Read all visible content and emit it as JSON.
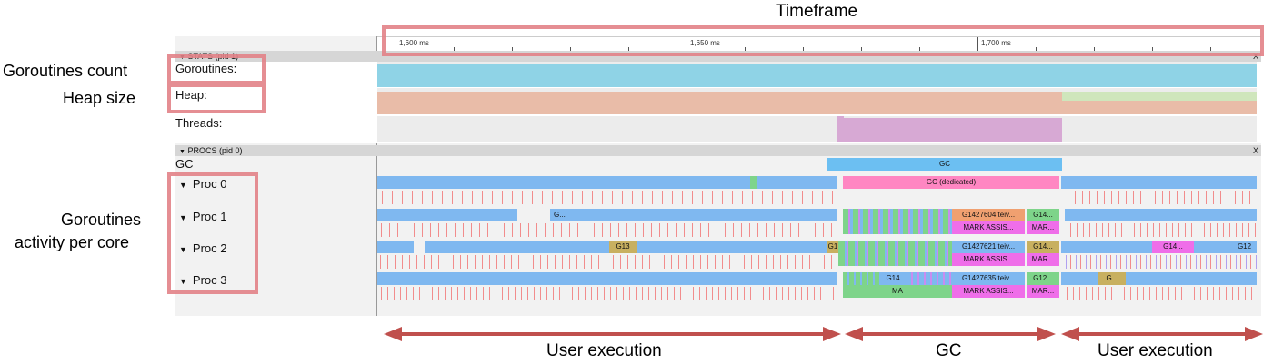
{
  "annotations": {
    "timeframe": "Timeframe",
    "goroutines_count": "Goroutines count",
    "heap_size": "Heap size",
    "activity_line1": "Goroutines",
    "activity_line2": "activity per core",
    "user_execution_left": "User execution",
    "gc_phase": "GC",
    "user_execution_right": "User execution"
  },
  "timeline": {
    "ticks": [
      "1,600 ms",
      "1,650 ms",
      "1,700 ms"
    ]
  },
  "stats": {
    "header": "STATS (pid 1)",
    "close": "X",
    "goroutines_label": "Goroutines:",
    "heap_label": "Heap:",
    "threads_label": "Threads:"
  },
  "procs": {
    "header": "PROCS (pid 0)",
    "close": "X",
    "gc_label": "GC",
    "gc_bar": "GC",
    "proc0": {
      "label": "Proc 0",
      "dedicated": "GC (dedicated)"
    },
    "proc1": {
      "label": "Proc 1",
      "g_short": "G...",
      "g1": "G1427604 teiv...",
      "g2": "G14...",
      "mark": "MARK ASSIS...",
      "mar": "MAR..."
    },
    "proc2": {
      "label": "Proc 2",
      "g13": "G13",
      "g1": "G1",
      "g2": "G1427621 teiv...",
      "g3": "G14...",
      "mark": "MARK ASSIS...",
      "mar": "MAR...",
      "g4": "G14...",
      "g5": "G12"
    },
    "proc3": {
      "label": "Proc 3",
      "g14": "G14",
      "g1": "G1427635 teiv...",
      "g2": "G12...",
      "ma": "MA",
      "mark": "MARK ASSIS...",
      "mar": "MAR...",
      "g3": "G..."
    }
  },
  "colors": {
    "goroutines": "#8fd3e6",
    "heap": "#e9bca8",
    "heap_green": "#cfe6bc",
    "threads": "#d7a9d4",
    "gc": "#6cbff2",
    "dedicated": "#ff86c2",
    "goroutine_blue": "#7fb8f0",
    "mark_assist": "#ef6ee9",
    "green": "#7ed48a",
    "annotation_red": "#c0504d"
  }
}
